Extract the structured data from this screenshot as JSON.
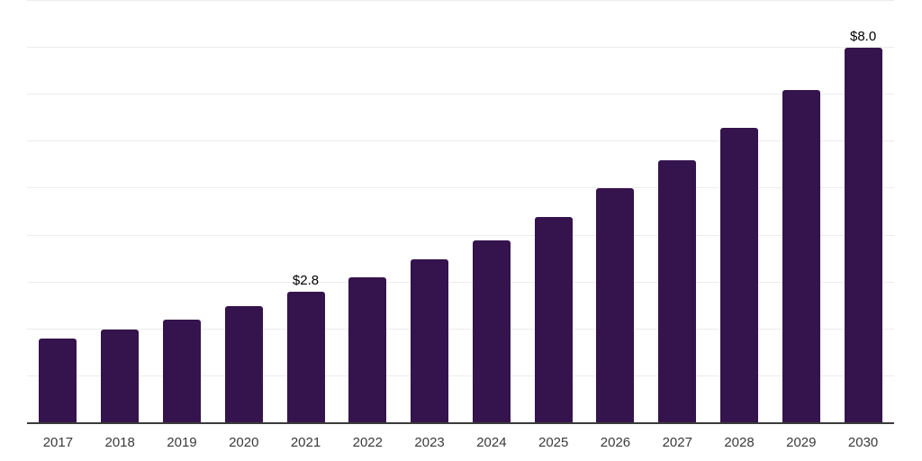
{
  "chart_data": {
    "type": "bar",
    "title": "",
    "xlabel": "",
    "ylabel": "",
    "categories": [
      "2017",
      "2018",
      "2019",
      "2020",
      "2021",
      "2022",
      "2023",
      "2024",
      "2025",
      "2026",
      "2027",
      "2028",
      "2029",
      "2030"
    ],
    "values": [
      1.8,
      2.0,
      2.2,
      2.5,
      2.8,
      3.1,
      3.5,
      3.9,
      4.4,
      5.0,
      5.6,
      6.3,
      7.1,
      8.0
    ],
    "point_labels": [
      "",
      "",
      "",
      "",
      "$2.8",
      "",
      "",
      "",
      "",
      "",
      "",
      "",
      "",
      "$8.0"
    ],
    "ylim": [
      0,
      9
    ],
    "gridline_step": 1,
    "grid": true,
    "legend": false,
    "y_axis_labels_visible": false,
    "colors": {
      "bar": "#35134D",
      "gridline": "#ececec",
      "axis_line": "#3b3b3b",
      "tick_label": "#3a3a3a",
      "value_label": "#000000",
      "background": "#ffffff"
    }
  }
}
